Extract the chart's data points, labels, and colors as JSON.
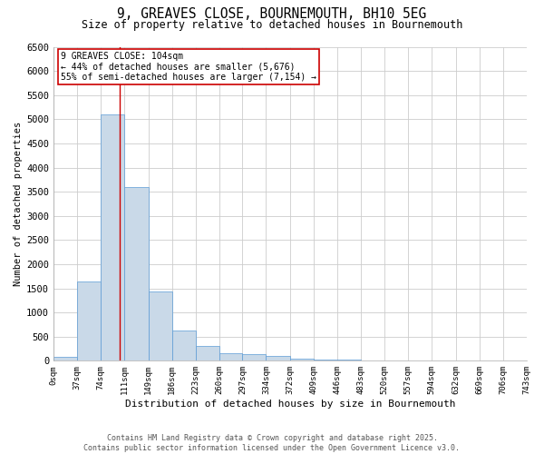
{
  "title_line1": "9, GREAVES CLOSE, BOURNEMOUTH, BH10 5EG",
  "title_line2": "Size of property relative to detached houses in Bournemouth",
  "xlabel": "Distribution of detached houses by size in Bournemouth",
  "ylabel": "Number of detached properties",
  "bin_edges": [
    0,
    37,
    74,
    111,
    149,
    186,
    223,
    260,
    297,
    334,
    372,
    409,
    446,
    483,
    520,
    557,
    594,
    632,
    669,
    706,
    743
  ],
  "bar_heights": [
    74,
    1650,
    5100,
    3600,
    1430,
    620,
    310,
    165,
    130,
    100,
    50,
    30,
    30,
    0,
    0,
    0,
    0,
    0,
    0,
    0
  ],
  "bar_color": "#c9d9e8",
  "bar_edge_color": "#5b9bd5",
  "property_size": 104,
  "vline_color": "#cc0000",
  "annotation_text": "9 GREAVES CLOSE: 104sqm\n← 44% of detached houses are smaller (5,676)\n55% of semi-detached houses are larger (7,154) →",
  "annotation_box_color": "#cc0000",
  "ylim": [
    0,
    6500
  ],
  "yticks": [
    0,
    500,
    1000,
    1500,
    2000,
    2500,
    3000,
    3500,
    4000,
    4500,
    5000,
    5500,
    6000,
    6500
  ],
  "footer_line1": "Contains HM Land Registry data © Crown copyright and database right 2025.",
  "footer_line2": "Contains public sector information licensed under the Open Government Licence v3.0.",
  "background_color": "#ffffff",
  "grid_color": "#cccccc",
  "title1_fontsize": 10.5,
  "title2_fontsize": 8.5,
  "xlabel_fontsize": 8,
  "ylabel_fontsize": 7.5,
  "xtick_fontsize": 6.5,
  "ytick_fontsize": 7.5,
  "ann_fontsize": 7,
  "footer_fontsize": 6
}
